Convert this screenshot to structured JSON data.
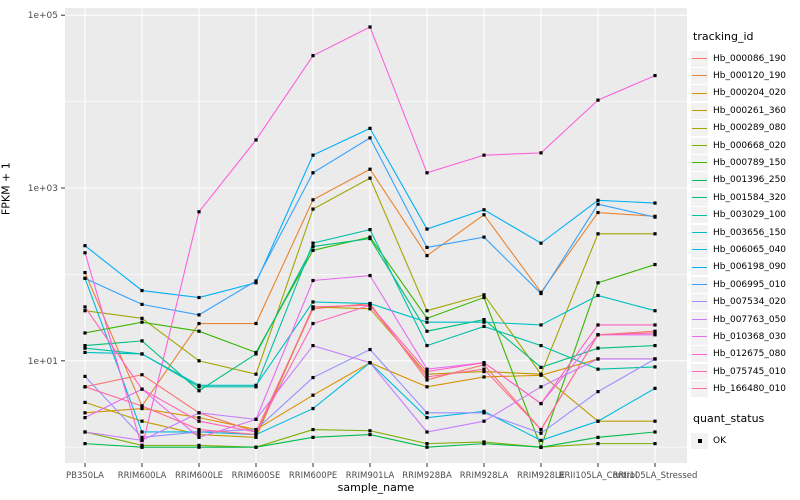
{
  "chart_data": {
    "type": "line",
    "title": "",
    "xlabel": "sample_name",
    "ylabel": "FPKM + 1",
    "y_scale": "log10",
    "y_ticks": [
      {
        "label": "1e+05",
        "value": 100000
      },
      {
        "label": "1e+03",
        "value": 1000
      },
      {
        "label": "1e+01",
        "value": 10
      }
    ],
    "y_minor_values": [
      1,
      100,
      10000
    ],
    "ylim_log10": [
      -0.25,
      5.1
    ],
    "grid": true,
    "legend_position": "right",
    "legend_title": "tracking_id",
    "legend2_title": "quant_status",
    "quant_status": {
      "label": "OK",
      "point_shape": "filled-square",
      "point_color": "#000000"
    },
    "categories": [
      "PB350LA",
      "RRIM600LA",
      "RRIM600LE",
      "RRIM600SE",
      "RRIM600PE",
      "RRIM901LA",
      "RRIM928BA",
      "RRIM928LA",
      "RRIM928LE",
      "RRII105LA_Control",
      "RRII105LA_Stressed"
    ],
    "y_values_are": "FPKM + 1 (plotted on log axis)",
    "series": [
      {
        "name": "Hb_000086_190",
        "color": "#F8766D",
        "values": [
          5,
          6.9,
          2.5,
          1.5,
          40,
          46,
          6,
          9,
          1.6,
          20,
          22
        ]
      },
      {
        "name": "Hb_000120_190",
        "color": "#EA8331",
        "values": [
          105,
          3,
          27,
          27,
          730,
          1650,
          165,
          490,
          62,
          520,
          470
        ]
      },
      {
        "name": "Hb_000204_020",
        "color": "#D89000",
        "values": [
          2.5,
          2.8,
          2.2,
          1.6,
          4,
          9.5,
          5,
          6.5,
          6.8,
          10.5,
          10.5
        ]
      },
      {
        "name": "Hb_000261_360",
        "color": "#C09B00",
        "values": [
          3.3,
          2,
          1.4,
          1.3,
          42,
          40,
          7,
          7.5,
          7,
          2,
          2
        ]
      },
      {
        "name": "Hb_000289_080",
        "color": "#A3A500",
        "values": [
          38,
          31,
          10,
          7,
          570,
          1300,
          38,
          58,
          7,
          295,
          295
        ]
      },
      {
        "name": "Hb_000668_020",
        "color": "#7CAE00",
        "values": [
          1.5,
          1.05,
          1.05,
          1,
          1.6,
          1.55,
          1.1,
          1.15,
          1,
          1.1,
          1.1
        ]
      },
      {
        "name": "Hb_000789_150",
        "color": "#39B600",
        "values": [
          21,
          28,
          22,
          12.5,
          190,
          270,
          31,
          54,
          1,
          80,
          130
        ]
      },
      {
        "name": "Hb_001396_250",
        "color": "#00BB4E",
        "values": [
          1.1,
          1,
          1,
          1,
          1.3,
          1.4,
          1,
          1.1,
          1,
          1.3,
          1.5
        ]
      },
      {
        "name": "Hb_001584_320",
        "color": "#00BF7D",
        "values": [
          15,
          17,
          4.5,
          12,
          210,
          260,
          22,
          30,
          8.4,
          14,
          15
        ]
      },
      {
        "name": "Hb_003029_100",
        "color": "#00C1A3",
        "values": [
          14,
          12,
          5,
          5,
          230,
          330,
          15,
          25,
          15,
          8,
          8.5
        ]
      },
      {
        "name": "Hb_003656_150",
        "color": "#00BFC4",
        "values": [
          12.5,
          12,
          5.2,
          5.2,
          48,
          46,
          28,
          28,
          26,
          57,
          38
        ]
      },
      {
        "name": "Hb_006065_040",
        "color": "#00BAE0",
        "values": [
          90,
          1.5,
          1.5,
          1.4,
          2.8,
          9.5,
          2.2,
          2.6,
          1.2,
          2,
          4.8
        ]
      },
      {
        "name": "Hb_006198_090",
        "color": "#00B0F6",
        "values": [
          215,
          65,
          54,
          80,
          2400,
          4900,
          335,
          560,
          230,
          720,
          670
        ]
      },
      {
        "name": "Hb_006995_010",
        "color": "#35A2FF",
        "values": [
          90,
          45,
          34,
          84,
          1500,
          3800,
          205,
          270,
          60,
          650,
          460
        ]
      },
      {
        "name": "Hb_007534_020",
        "color": "#9590FF",
        "values": [
          6.6,
          1.3,
          1.5,
          1.6,
          6.4,
          13.5,
          2.5,
          2.5,
          1.45,
          4.4,
          10.5
        ]
      },
      {
        "name": "Hb_007763_050",
        "color": "#C77CFF",
        "values": [
          1.5,
          1.2,
          2.5,
          2.1,
          15,
          9.5,
          1.5,
          2,
          5,
          10.5,
          10.5
        ]
      },
      {
        "name": "Hb_010368_030",
        "color": "#E76BF3",
        "values": [
          2.2,
          4.7,
          1.3,
          2.1,
          85,
          97,
          8,
          9.5,
          3.2,
          20,
          20
        ]
      },
      {
        "name": "Hb_012675_080",
        "color": "#FA62DB",
        "values": [
          178,
          1,
          530,
          3600,
          34000,
          73000,
          1500,
          2400,
          2550,
          10400,
          20000
        ]
      },
      {
        "name": "Hb_075745_010",
        "color": "#FF62BC",
        "values": [
          42,
          4.7,
          2,
          1.5,
          27,
          44,
          7.5,
          9.5,
          3.2,
          26,
          26
        ]
      },
      {
        "name": "Hb_166480_010",
        "color": "#FF6A98",
        "values": [
          5,
          3,
          1.6,
          1.4,
          42,
          44,
          6.5,
          8,
          1.6,
          20,
          21
        ]
      }
    ],
    "colors": {
      "panel_background": "#EBEBEB",
      "grid_major": "#FFFFFF",
      "grid_minor": "#FFFFFF",
      "tick_mark": "#333333",
      "tick_label": "#4D4D4D",
      "axis_title": "#000000",
      "point": "#000000",
      "legend_key_background": "#F2F2F2"
    }
  }
}
